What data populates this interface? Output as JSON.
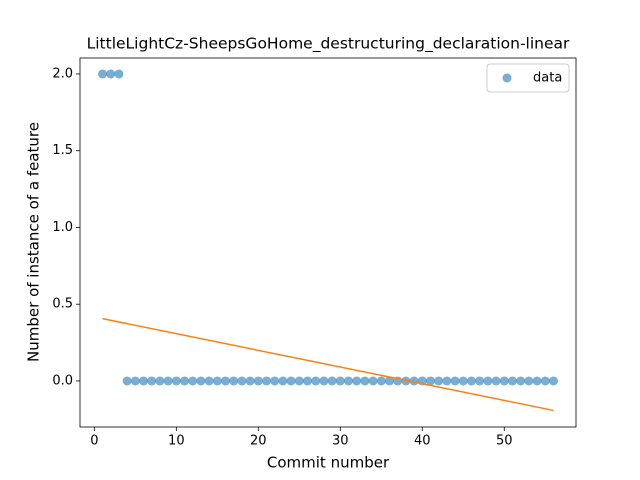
{
  "chart_data": {
    "type": "scatter",
    "title": "LittleLightCz-SheepsGoHome_destructuring_declaration-linear",
    "xlabel": "Commit number",
    "ylabel": "Number of instance of a feature",
    "series": [
      {
        "name": "data",
        "type": "scatter",
        "color": "#1f77b4",
        "x": [
          1,
          2,
          3,
          4,
          5,
          6,
          7,
          8,
          9,
          10,
          11,
          12,
          13,
          14,
          15,
          16,
          17,
          18,
          19,
          20,
          21,
          22,
          23,
          24,
          25,
          26,
          27,
          28,
          29,
          30,
          31,
          32,
          33,
          34,
          35,
          36,
          37,
          38,
          39,
          40,
          41,
          42,
          43,
          44,
          45,
          46,
          47,
          48,
          49,
          50,
          51,
          52,
          53,
          54,
          55,
          56
        ],
        "values": [
          2,
          2,
          2,
          0,
          0,
          0,
          0,
          0,
          0,
          0,
          0,
          0,
          0,
          0,
          0,
          0,
          0,
          0,
          0,
          0,
          0,
          0,
          0,
          0,
          0,
          0,
          0,
          0,
          0,
          0,
          0,
          0,
          0,
          0,
          0,
          0,
          0,
          0,
          0,
          0,
          0,
          0,
          0,
          0,
          0,
          0,
          0,
          0,
          0,
          0,
          0,
          0,
          0,
          0,
          0,
          0
        ]
      },
      {
        "type": "line",
        "color": "#ff7f0e",
        "x": [
          1,
          56
        ],
        "values": [
          0.406,
          -0.192
        ]
      }
    ],
    "xlim": [
      -1.75,
      58.75
    ],
    "ylim": [
      -0.3,
      2.104
    ],
    "xticks": [
      0,
      10,
      20,
      30,
      40,
      50
    ],
    "yticks": [
      {
        "value": 0,
        "label": "0.0"
      },
      {
        "value": 0.5,
        "label": "0.5"
      },
      {
        "value": 1,
        "label": "1.0"
      },
      {
        "value": 1.5,
        "label": "1.5"
      },
      {
        "value": 2,
        "label": "2.0"
      }
    ],
    "legend": "upper right"
  }
}
